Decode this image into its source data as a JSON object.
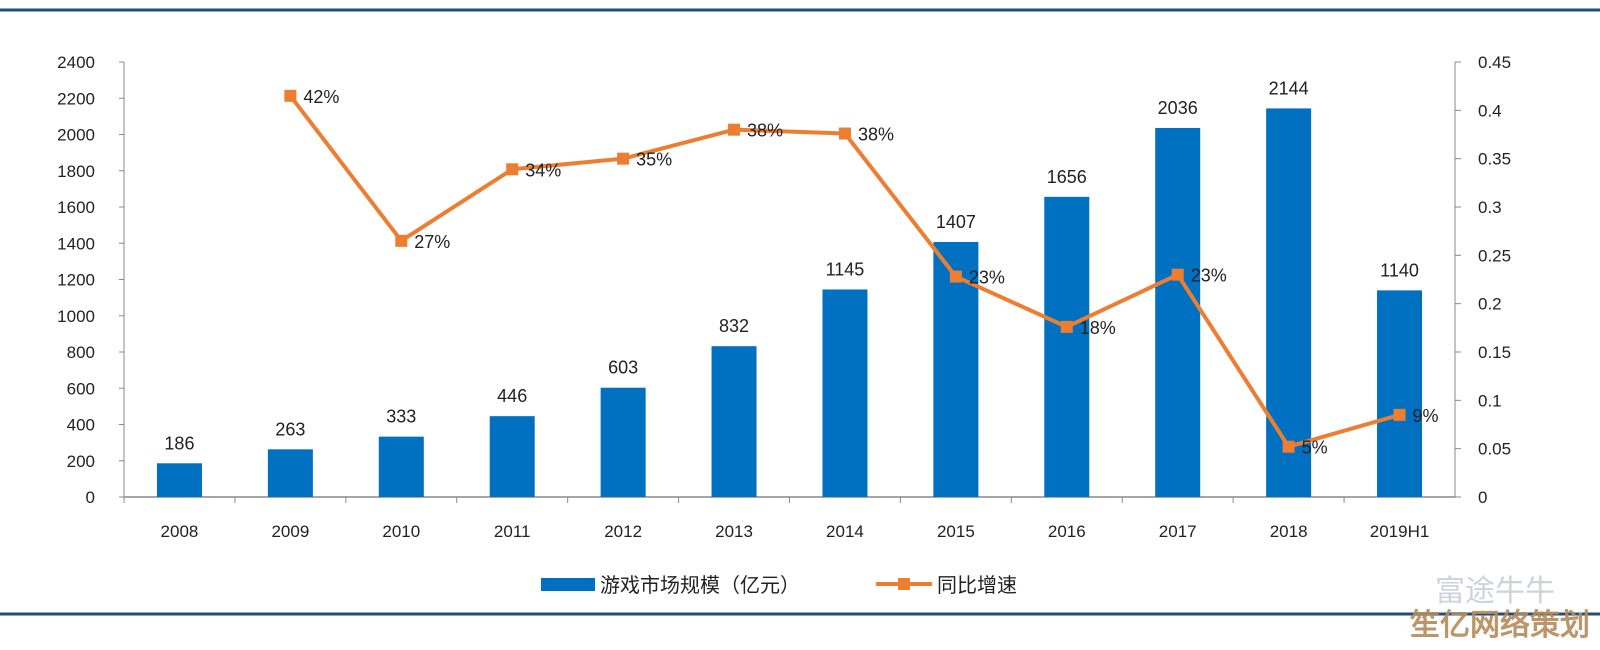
{
  "chart_data": {
    "type": "bar+line",
    "categories": [
      "2008",
      "2009",
      "2010",
      "2011",
      "2012",
      "2013",
      "2014",
      "2015",
      "2016",
      "2017",
      "2018",
      "2019H1"
    ],
    "series": [
      {
        "name": "游戏市场规模（亿元）",
        "type": "bar",
        "axis": "left",
        "color": "#0070c0",
        "values": [
          186,
          263,
          333,
          446,
          603,
          832,
          1145,
          1407,
          1656,
          2036,
          2144,
          1140
        ],
        "labels": [
          "186",
          "263",
          "333",
          "446",
          "603",
          "832",
          "1145",
          "1407",
          "1656",
          "2036",
          "2144",
          "1140"
        ]
      },
      {
        "name": "同比增速",
        "type": "line",
        "axis": "right",
        "color": "#ed7d31",
        "values": [
          null,
          0.415,
          0.265,
          0.339,
          0.35,
          0.38,
          0.376,
          0.228,
          0.176,
          0.23,
          0.052,
          0.085
        ],
        "labels": [
          null,
          "42%",
          "27%",
          "34%",
          "35%",
          "38%",
          "38%",
          "23%",
          "18%",
          "23%",
          "5%",
          "9%"
        ]
      }
    ],
    "y_left": {
      "range": [
        0,
        2400
      ],
      "ticks": [
        "0",
        "200",
        "400",
        "600",
        "800",
        "1000",
        "1200",
        "1400",
        "1600",
        "1800",
        "2000",
        "2200",
        "2400"
      ]
    },
    "y_right": {
      "range": [
        0,
        0.45
      ],
      "ticks": [
        "0",
        "0.05",
        "0.1",
        "0.15",
        "0.2",
        "0.25",
        "0.3",
        "0.35",
        "0.4",
        "0.45"
      ]
    },
    "grid": false,
    "legend": "bottom-center"
  },
  "frame_color": "#1f4e79",
  "watermark": {
    "logo_text": "富途牛牛",
    "site_text": "笙亿网络策划"
  }
}
